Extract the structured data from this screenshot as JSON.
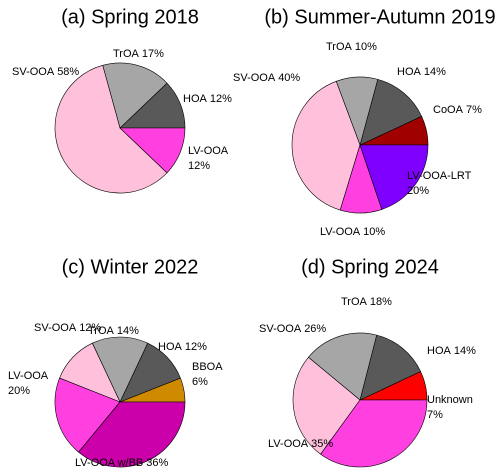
{
  "chart_data": [
    {
      "type": "pie",
      "title": "(a) Spring 2018",
      "categories": [
        "HOA",
        "TrOA",
        "SV-OOA",
        "LV-OOA"
      ],
      "values": [
        12,
        17,
        58,
        12
      ],
      "value_labels": [
        "12%",
        "17%",
        "58%",
        "12%"
      ],
      "colors": [
        "#595959",
        "#a6a6a6",
        "#ffc0dc",
        "#ff3fe0"
      ]
    },
    {
      "type": "pie",
      "title": "(b) Summer-Autumn 2019",
      "categories": [
        "CoOA",
        "HOA",
        "TrOA",
        "SV-OOA",
        "LV-OOA",
        "LV-OOA-LRT"
      ],
      "values": [
        7,
        14,
        10,
        40,
        10,
        20
      ],
      "value_labels": [
        "7%",
        "14%",
        "10%",
        "40%",
        "10%",
        "20%"
      ],
      "colors": [
        "#a00000",
        "#595959",
        "#a6a6a6",
        "#ffc0dc",
        "#ff3fe0",
        "#8000ff"
      ]
    },
    {
      "type": "pie",
      "title": "(c) Winter 2022",
      "categories": [
        "BBOA",
        "HOA",
        "TrOA",
        "SV-OOA",
        "LV-OOA",
        "LV-OOA w/BB"
      ],
      "values": [
        6,
        12,
        14,
        12,
        20,
        36
      ],
      "value_labels": [
        "6%",
        "12%",
        "14%",
        "12%",
        "20%",
        "36%"
      ],
      "colors": [
        "#d08a00",
        "#595959",
        "#a6a6a6",
        "#ffc0dc",
        "#ff3fe0",
        "#cc00aa"
      ]
    },
    {
      "type": "pie",
      "title": "(d) Spring 2024",
      "categories": [
        "Unknown",
        "HOA",
        "TrOA",
        "SV-OOA",
        "LV-OOA"
      ],
      "values": [
        7,
        14,
        18,
        26,
        35
      ],
      "value_labels": [
        "7%",
        "14%",
        "18%",
        "26%",
        "35%"
      ],
      "colors": [
        "#ff0000",
        "#595959",
        "#a6a6a6",
        "#ffc0dc",
        "#ff3fe0"
      ]
    }
  ]
}
